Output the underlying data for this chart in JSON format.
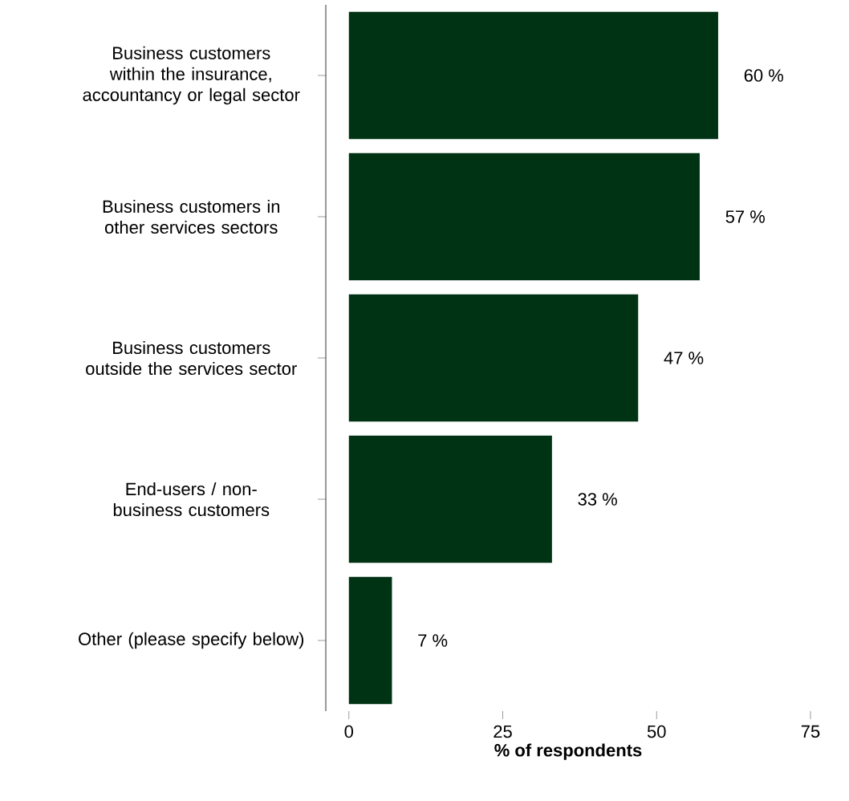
{
  "chart_data": {
    "type": "bar",
    "orientation": "horizontal",
    "xlabel": "% of respondents",
    "categories": [
      "Business customers within the insurance, accountancy or legal sector",
      "Business customers in other services sectors",
      "Business customers outside the services sector",
      "End-users / non-business customers",
      "Other (please specify below)"
    ],
    "values": [
      60,
      57,
      47,
      33,
      7
    ],
    "value_labels": [
      "60 %",
      "57 %",
      "47 %",
      "33 %",
      "7 %"
    ],
    "color": "#003314",
    "xlim": [
      -3.75,
      75
    ],
    "xticks": [
      0,
      25,
      50,
      75
    ]
  }
}
